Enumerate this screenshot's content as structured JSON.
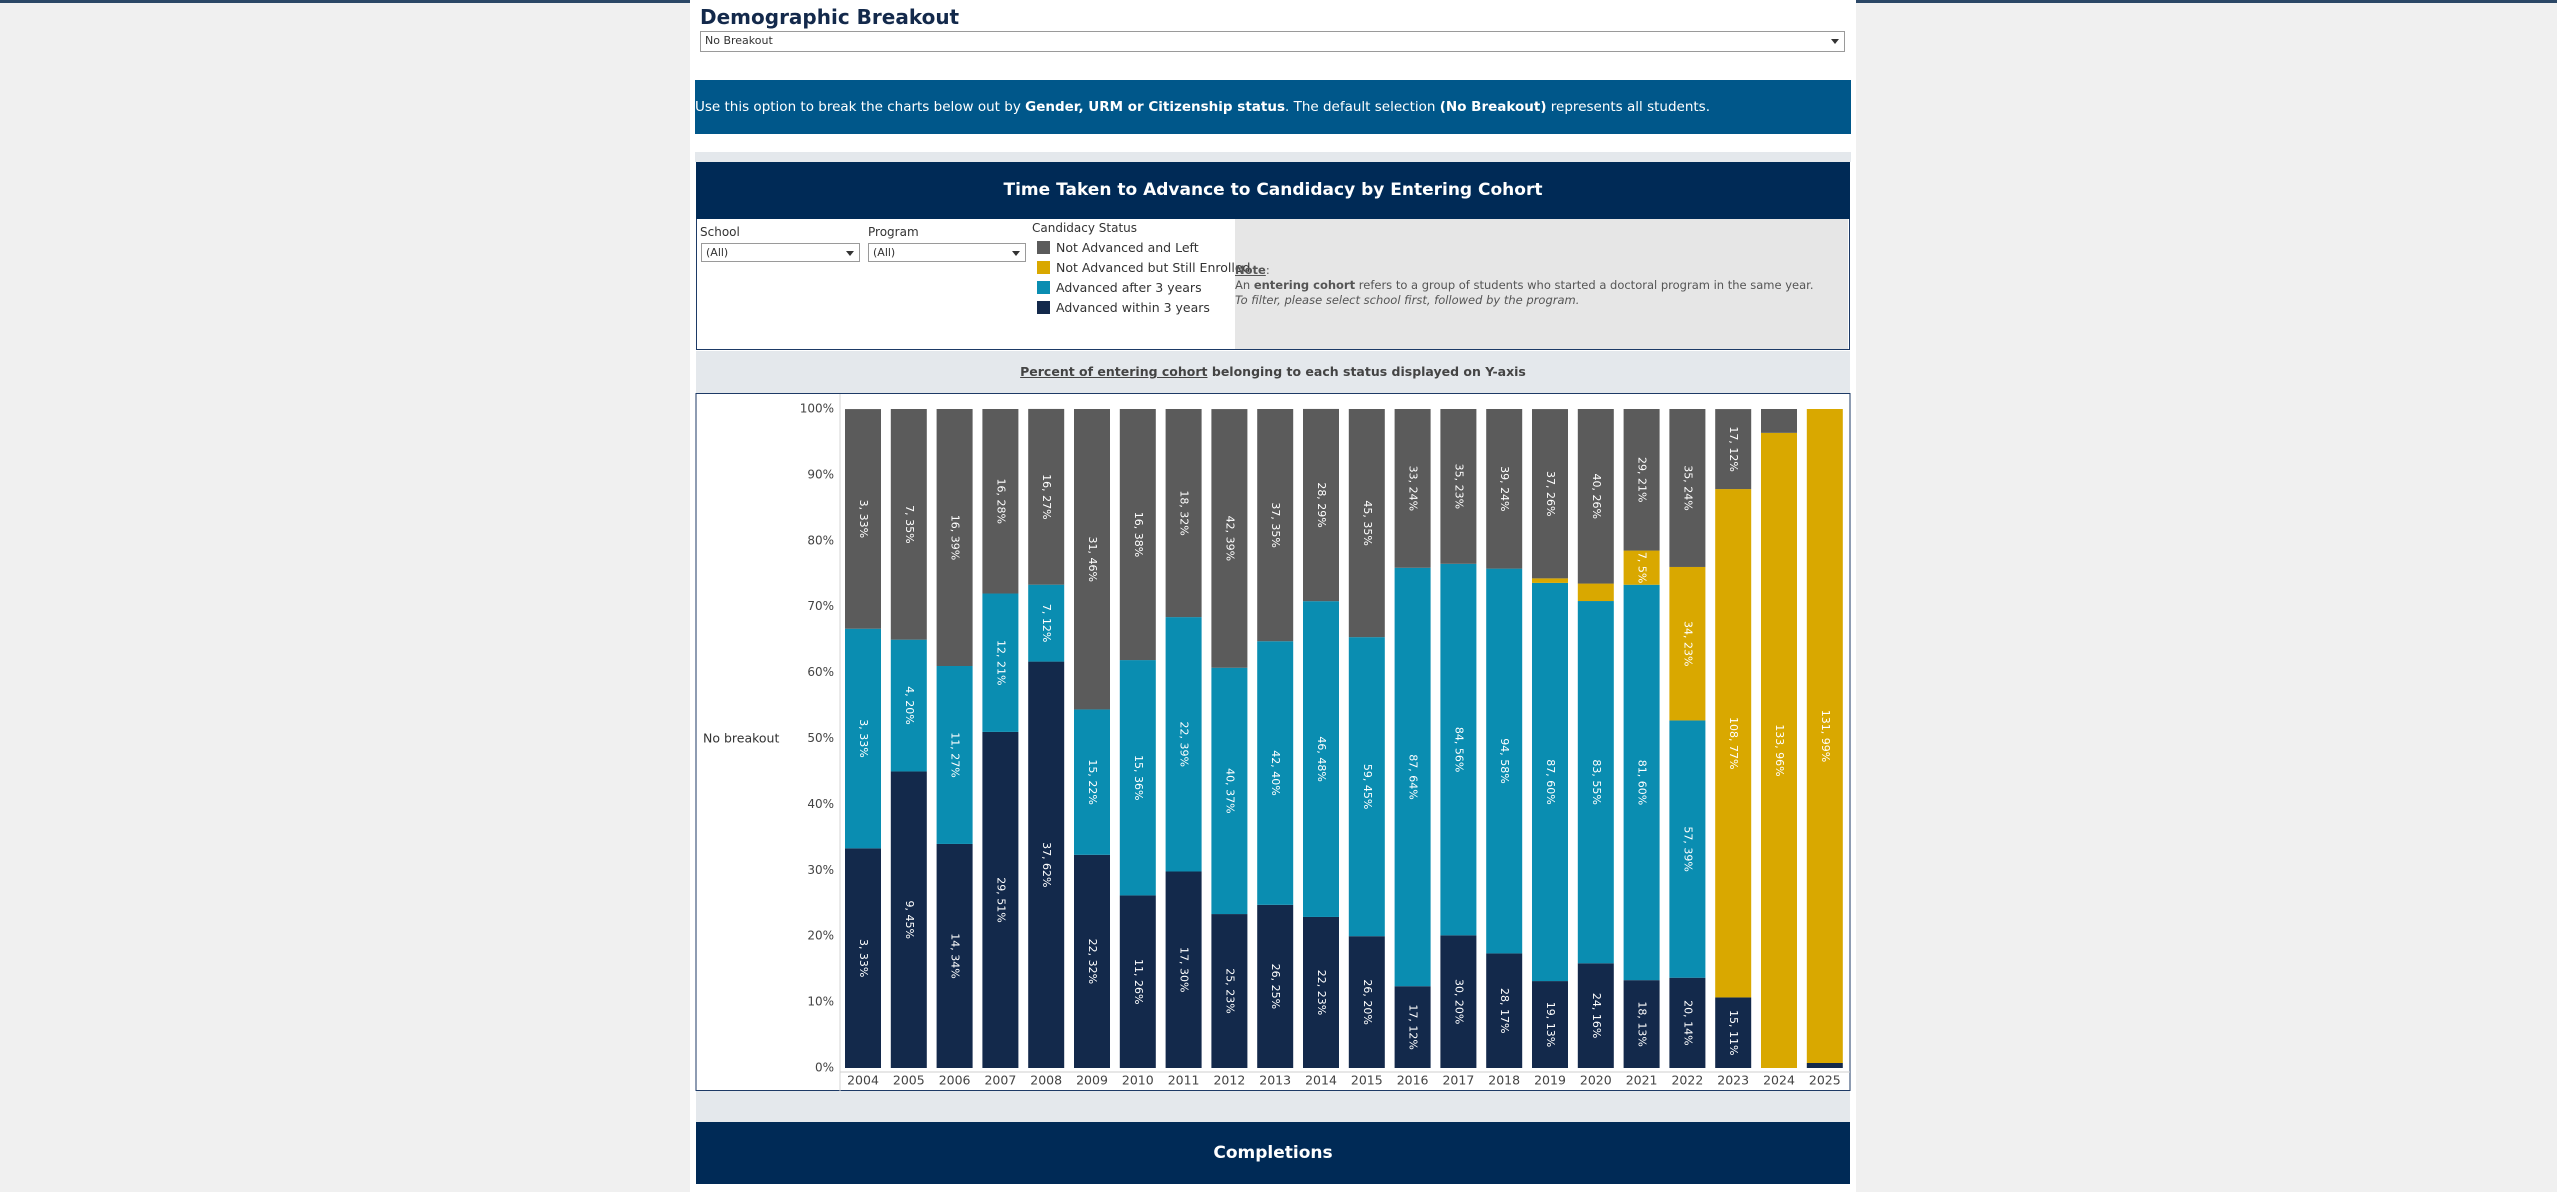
{
  "header": {
    "title": "Demographic Breakout",
    "dropdown": "No Breakout"
  },
  "banner": [
    "Use this option to break the charts below out by ",
    "Gender, URM or Citizenship status",
    ". The default selection ",
    "(No Breakout)",
    " represents all students."
  ],
  "filters": {
    "school_label": "School",
    "school_value": "(All)",
    "program_label": "Program",
    "program_value": "(All)"
  },
  "note": {
    "heading": "Note",
    "colon": ":",
    "line1": [
      "An ",
      "entering cohort",
      " refers to a group of students who started a doctoral program in the same year."
    ],
    "line2": "To filter, please select school first, followed by the program."
  },
  "axis_caption": [
    "Percent of entering cohort",
    " belonging to each status displayed on Y-axis"
  ],
  "next_section": "Completions",
  "chart_data": {
    "type": "stacked_bar",
    "title": "Time Taken to Advance to Candidacy by Entering Cohort",
    "legend_title": "Candidacy Status",
    "row_label": "No breakout",
    "categories": [
      "2004",
      "2005",
      "2006",
      "2007",
      "2008",
      "2009",
      "2010",
      "2011",
      "2012",
      "2013",
      "2014",
      "2015",
      "2016",
      "2017",
      "2018",
      "2019",
      "2020",
      "2021",
      "2022",
      "2023",
      "2024",
      "2025"
    ],
    "series": [
      {
        "name": "Not Advanced and Left",
        "color": "#5b5b5b",
        "values": [
          33.33,
          35,
          39,
          28,
          26.67,
          45.59,
          38.1,
          31.58,
          39.25,
          35.24,
          29.17,
          34.62,
          24.09,
          23.49,
          24.22,
          25.69,
          26.49,
          21.48,
          23.97,
          12.14,
          3.62,
          null
        ],
        "value_labels": [
          "3, 33%",
          "7, 35%",
          "16, 39%",
          "16, 28%",
          "16, 27%",
          "31, 46%",
          "16, 38%",
          "18, 32%",
          "42, 39%",
          "37, 35%",
          "28, 29%",
          "45, 35%",
          "33, 24%",
          "35, 23%",
          "39, 24%",
          "37, 26%",
          "40, 26%",
          "29, 21%",
          "35, 24%",
          "17, 12%",
          null,
          null
        ]
      },
      {
        "name": "Not Advanced but Still Enrolled",
        "color": "#d9a800",
        "values": [
          null,
          null,
          null,
          null,
          null,
          null,
          null,
          null,
          null,
          null,
          null,
          null,
          null,
          null,
          null,
          0.69,
          2.65,
          5.19,
          23.29,
          77.14,
          96.38,
          99.24
        ],
        "value_labels": [
          null,
          null,
          null,
          null,
          null,
          null,
          null,
          null,
          null,
          null,
          null,
          null,
          null,
          null,
          null,
          null,
          null,
          "7, 5%",
          "34, 23%",
          "108, 77%",
          "133, 96%",
          "131, 99%"
        ]
      },
      {
        "name": "Advanced after 3 years",
        "color": "#0a8db1",
        "values": [
          33.33,
          20,
          27,
          21,
          11.67,
          22.06,
          35.71,
          38.6,
          37.38,
          40,
          47.92,
          45.38,
          63.5,
          56.38,
          58.39,
          60.42,
          54.97,
          60,
          39.04,
          null,
          null,
          null
        ],
        "value_labels": [
          "3, 33%",
          "4, 20%",
          "11, 27%",
          "12, 21%",
          "7, 12%",
          "15, 22%",
          "15, 36%",
          "22, 39%",
          "40, 37%",
          "42, 40%",
          "46, 48%",
          "59, 45%",
          "87, 64%",
          "84, 56%",
          "94, 58%",
          "87, 60%",
          "83, 55%",
          "81, 60%",
          "57, 39%",
          null,
          null,
          null
        ]
      },
      {
        "name": "Advanced within 3 years",
        "color": "#13294b",
        "values": [
          33.33,
          45,
          34,
          51,
          61.67,
          32.35,
          26.19,
          29.82,
          23.36,
          24.76,
          22.92,
          20,
          12.41,
          20.13,
          17.39,
          13.19,
          15.89,
          13.33,
          13.7,
          10.71,
          null,
          0.76
        ],
        "value_labels": [
          "3, 33%",
          "9, 45%",
          "14, 34%",
          "29, 51%",
          "37, 62%",
          "22, 32%",
          "11, 26%",
          "17, 30%",
          "25, 23%",
          "26, 25%",
          "22, 23%",
          "26, 20%",
          "17, 12%",
          "30, 20%",
          "28, 17%",
          "19, 13%",
          "24, 16%",
          "18, 13%",
          "20, 14%",
          "15, 11%",
          null,
          null
        ]
      }
    ],
    "ylim": [
      0,
      100
    ],
    "yticks": [
      {
        "value": 0,
        "label": "0%"
      },
      {
        "value": 10,
        "label": "10%"
      },
      {
        "value": 20,
        "label": "20%"
      },
      {
        "value": 30,
        "label": "30%"
      },
      {
        "value": 40,
        "label": "40%"
      },
      {
        "value": 50,
        "label": "50%"
      },
      {
        "value": 60,
        "label": "60%"
      },
      {
        "value": 70,
        "label": "70%"
      },
      {
        "value": 80,
        "label": "80%"
      },
      {
        "value": 90,
        "label": "90%"
      },
      {
        "value": 100,
        "label": "100%"
      }
    ],
    "grid": false
  }
}
